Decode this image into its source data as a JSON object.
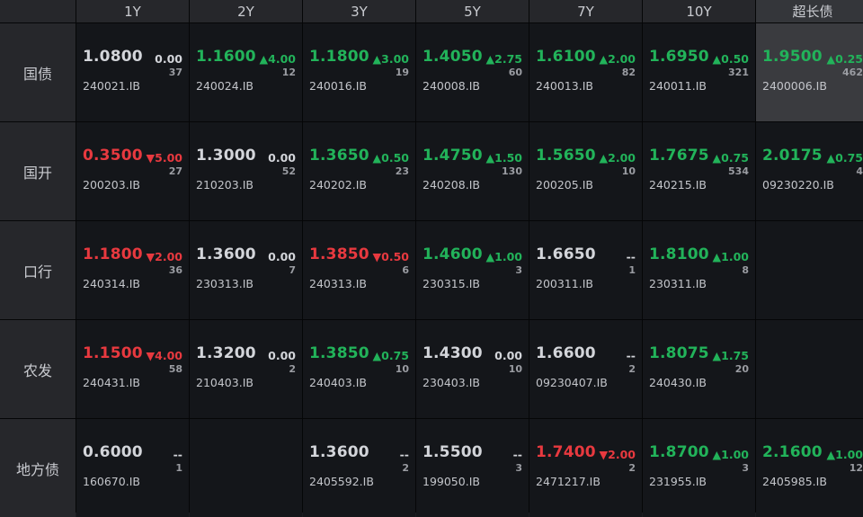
{
  "columns": [
    "1Y",
    "2Y",
    "3Y",
    "5Y",
    "7Y",
    "10Y",
    "超长债"
  ],
  "colors": {
    "up": "#22b35a",
    "down": "#e8393f",
    "flat": "#d3d5da"
  },
  "rows": [
    {
      "label": "国债",
      "cells": [
        {
          "yield": "1.0800",
          "change": "0.00",
          "dir": "flat",
          "count": "37",
          "code": "240021.IB"
        },
        {
          "yield": "1.1600",
          "change": "▲4.00",
          "dir": "up",
          "count": "12",
          "code": "240024.IB"
        },
        {
          "yield": "1.1800",
          "change": "▲3.00",
          "dir": "up",
          "count": "19",
          "code": "240016.IB"
        },
        {
          "yield": "1.4050",
          "change": "▲2.75",
          "dir": "up",
          "count": "60",
          "code": "240008.IB"
        },
        {
          "yield": "1.6100",
          "change": "▲2.00",
          "dir": "up",
          "count": "82",
          "code": "240013.IB"
        },
        {
          "yield": "1.6950",
          "change": "▲0.50",
          "dir": "up",
          "count": "321",
          "code": "240011.IB"
        },
        {
          "yield": "1.9500",
          "change": "▲0.25",
          "dir": "up",
          "count": "462",
          "code": "2400006.IB",
          "highlight": true
        }
      ]
    },
    {
      "label": "国开",
      "cells": [
        {
          "yield": "0.3500",
          "change": "▼5.00",
          "dir": "down",
          "count": "27",
          "code": "200203.IB"
        },
        {
          "yield": "1.3000",
          "change": "0.00",
          "dir": "flat",
          "count": "52",
          "code": "210203.IB"
        },
        {
          "yield": "1.3650",
          "change": "▲0.50",
          "dir": "up",
          "count": "23",
          "code": "240202.IB"
        },
        {
          "yield": "1.4750",
          "change": "▲1.50",
          "dir": "up",
          "count": "130",
          "code": "240208.IB"
        },
        {
          "yield": "1.5650",
          "change": "▲2.00",
          "dir": "up",
          "count": "10",
          "code": "200205.IB"
        },
        {
          "yield": "1.7675",
          "change": "▲0.75",
          "dir": "up",
          "count": "534",
          "code": "240215.IB"
        },
        {
          "yield": "2.0175",
          "change": "▲0.75",
          "dir": "up",
          "count": "4",
          "code": "09230220.IB"
        }
      ]
    },
    {
      "label": "口行",
      "cells": [
        {
          "yield": "1.1800",
          "change": "▼2.00",
          "dir": "down",
          "count": "36",
          "code": "240314.IB"
        },
        {
          "yield": "1.3600",
          "change": "0.00",
          "dir": "flat",
          "count": "7",
          "code": "230313.IB"
        },
        {
          "yield": "1.3850",
          "change": "▼0.50",
          "dir": "down",
          "count": "6",
          "code": "240313.IB"
        },
        {
          "yield": "1.4600",
          "change": "▲1.00",
          "dir": "up",
          "count": "3",
          "code": "230315.IB"
        },
        {
          "yield": "1.6650",
          "change": "--",
          "dir": "flat",
          "count": "1",
          "code": "200311.IB"
        },
        {
          "yield": "1.8100",
          "change": "▲1.00",
          "dir": "up",
          "count": "8",
          "code": "230311.IB"
        },
        null
      ]
    },
    {
      "label": "农发",
      "cells": [
        {
          "yield": "1.1500",
          "change": "▼4.00",
          "dir": "down",
          "count": "58",
          "code": "240431.IB"
        },
        {
          "yield": "1.3200",
          "change": "0.00",
          "dir": "flat",
          "count": "2",
          "code": "210403.IB"
        },
        {
          "yield": "1.3850",
          "change": "▲0.75",
          "dir": "up",
          "count": "10",
          "code": "240403.IB"
        },
        {
          "yield": "1.4300",
          "change": "0.00",
          "dir": "flat",
          "count": "10",
          "code": "230403.IB"
        },
        {
          "yield": "1.6600",
          "change": "--",
          "dir": "flat",
          "count": "2",
          "code": "09230407.IB"
        },
        {
          "yield": "1.8075",
          "change": "▲1.75",
          "dir": "up",
          "count": "20",
          "code": "240430.IB"
        },
        null
      ]
    },
    {
      "label": "地方债",
      "cells": [
        {
          "yield": "0.6000",
          "change": "--",
          "dir": "flat",
          "count": "1",
          "code": "160670.IB"
        },
        null,
        {
          "yield": "1.3600",
          "change": "--",
          "dir": "flat",
          "count": "2",
          "code": "2405592.IB"
        },
        {
          "yield": "1.5500",
          "change": "--",
          "dir": "flat",
          "count": "3",
          "code": "199050.IB"
        },
        {
          "yield": "1.7400",
          "change": "▼2.00",
          "dir": "down",
          "count": "2",
          "code": "2471217.IB"
        },
        {
          "yield": "1.8700",
          "change": "▲1.00",
          "dir": "up",
          "count": "3",
          "code": "231955.IB"
        },
        {
          "yield": "2.1600",
          "change": "▲1.00",
          "dir": "up",
          "count": "12",
          "code": "2405985.IB"
        }
      ]
    }
  ]
}
